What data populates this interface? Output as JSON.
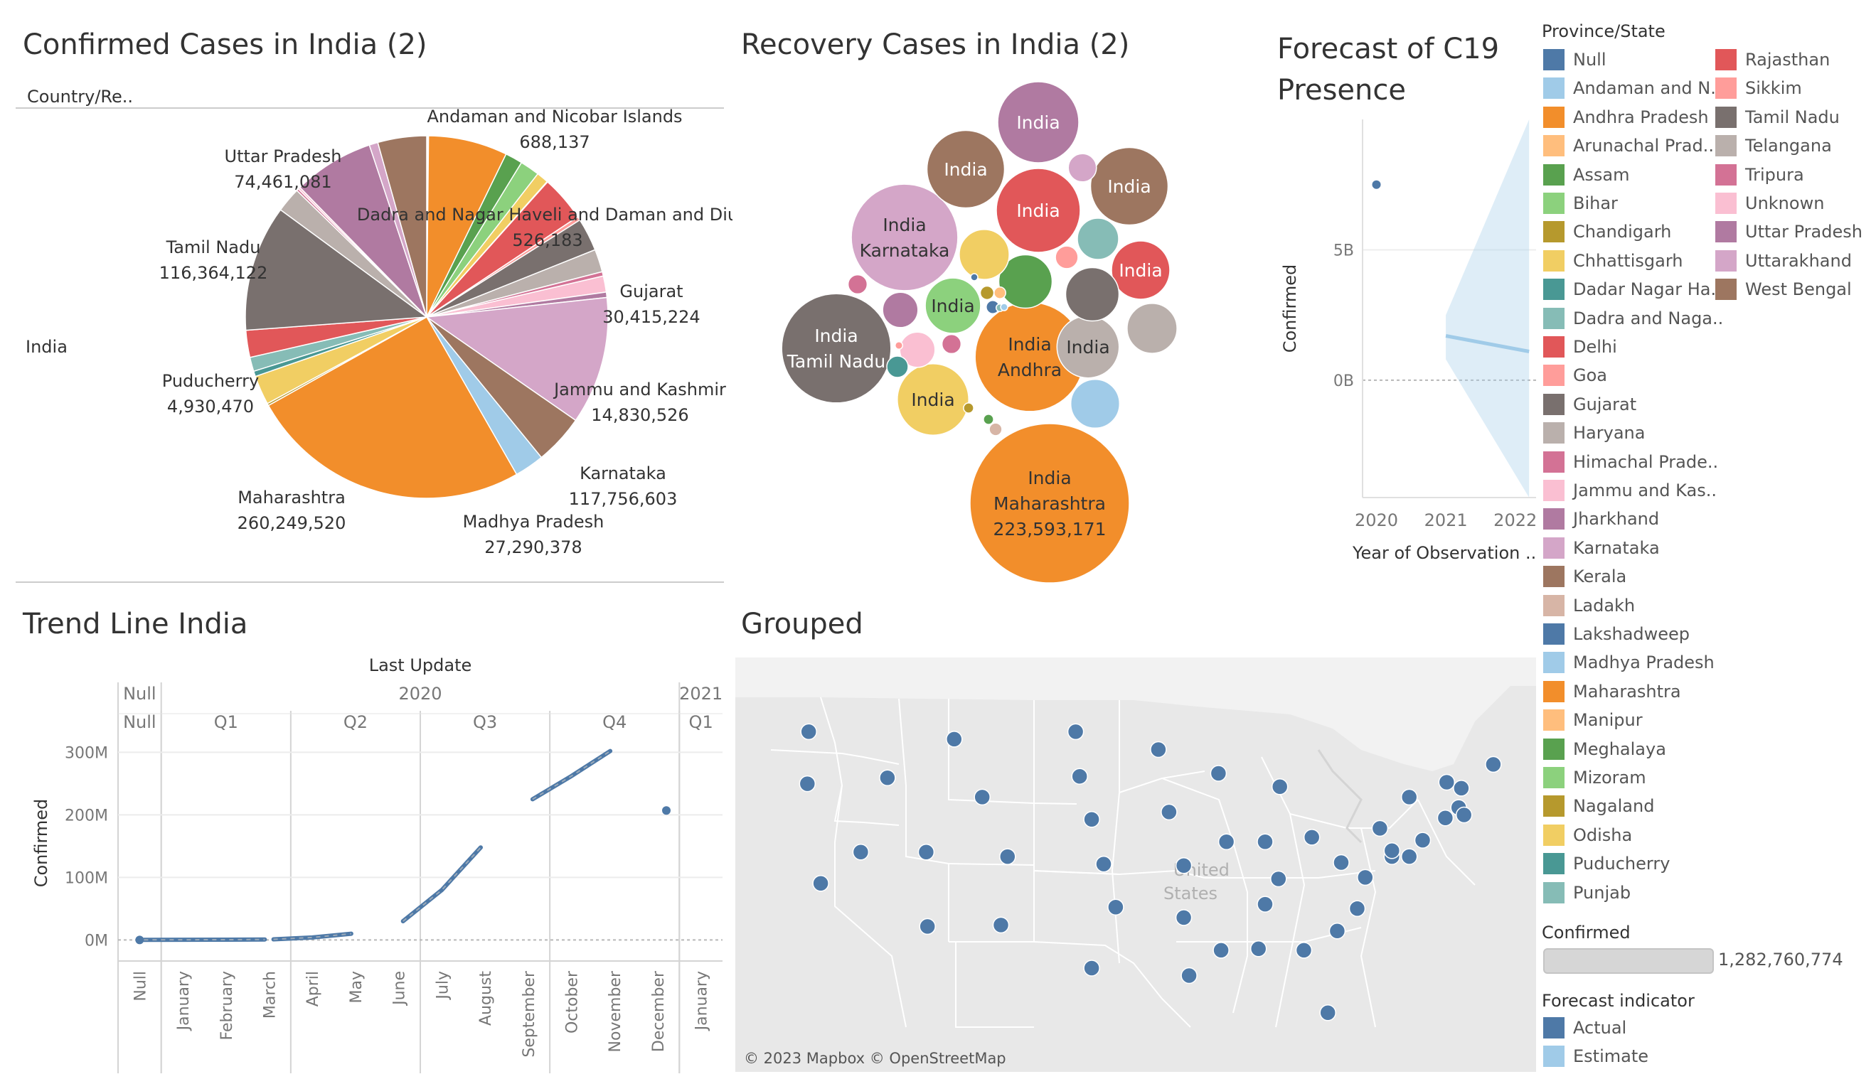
{
  "colors": {
    "Null": "#4e79a7",
    "Andaman and N..": "#a0cbe8",
    "Andhra Pradesh": "#f28e2b",
    "Arunachal Prad..": "#ffbe7d",
    "Assam": "#59a14f",
    "Bihar": "#8cd17d",
    "Chandigarh": "#b6992d",
    "Chhattisgarh": "#f1ce63",
    "Dadar Nagar Ha..": "#499894",
    "Dadra and Naga..": "#86bcb6",
    "Delhi": "#e15759",
    "Goa": "#ff9d9a",
    "Gujarat": "#79706e",
    "Haryana": "#bab0ac",
    "Himachal Prade..": "#d37295",
    "Jammu and Kas..": "#fabfd2",
    "Jharkhand": "#b07aa1",
    "Karnataka": "#d4a6c8",
    "Kerala": "#9d7660",
    "Ladakh": "#d7b5a6",
    "Lakshadweep": "#4e79a7",
    "Madhya Pradesh": "#a0cbe8",
    "Maharashtra": "#f28e2b",
    "Manipur": "#ffbe7d",
    "Meghalaya": "#59a14f",
    "Mizoram": "#8cd17d",
    "Nagaland": "#b6992d",
    "Odisha": "#f1ce63",
    "Puducherry": "#499894",
    "Punjab": "#86bcb6",
    "Rajasthan": "#e15759",
    "Sikkim": "#ff9d9a",
    "Tamil Nadu": "#79706e",
    "Telangana": "#bab0ac",
    "Tripura": "#d37295",
    "Unknown": "#fabfd2",
    "Uttar Pradesh": "#b07aa1",
    "Uttarakhand": "#d4a6c8",
    "West Bengal": "#9d7660"
  },
  "pie": {
    "title": "Confirmed Cases in India (2)",
    "column_header": "Country/Re..",
    "row_label": "India",
    "chart_data": {
      "type": "pie",
      "slices": [
        {
          "name": "Null",
          "value": 1000000
        },
        {
          "name": "Andaman and N..",
          "value": 688137
        },
        {
          "name": "Andhra Pradesh",
          "value": 73000000
        },
        {
          "name": "Assam",
          "value": 16000000
        },
        {
          "name": "Bihar",
          "value": 18000000
        },
        {
          "name": "Chhattisgarh",
          "value": 11000000
        },
        {
          "name": "Dadra and Naga..",
          "value": 526183
        },
        {
          "name": "Delhi",
          "value": 42000000
        },
        {
          "name": "Goa",
          "value": 3500000
        },
        {
          "name": "Gujarat",
          "value": 30415224
        },
        {
          "name": "Haryana",
          "value": 21000000
        },
        {
          "name": "Himachal Prade..",
          "value": 4000000
        },
        {
          "name": "Jammu and Kas..",
          "value": 14830526
        },
        {
          "name": "Jharkhand",
          "value": 5000000
        },
        {
          "name": "Karnataka",
          "value": 117756603
        },
        {
          "name": "Kerala",
          "value": 46000000
        },
        {
          "name": "Madhya Pradesh",
          "value": 27290378
        },
        {
          "name": "Maharashtra",
          "value": 260249520
        },
        {
          "name": "Nagaland",
          "value": 2000000
        },
        {
          "name": "Odisha",
          "value": 27000000
        },
        {
          "name": "Puducherry",
          "value": 4930470
        },
        {
          "name": "Punjab",
          "value": 13000000
        },
        {
          "name": "Rajasthan",
          "value": 25000000
        },
        {
          "name": "Tamil Nadu",
          "value": 116364122
        },
        {
          "name": "Telangana",
          "value": 23000000
        },
        {
          "name": "Tripura",
          "value": 2000000
        },
        {
          "name": "Unknown",
          "value": 2000000
        },
        {
          "name": "Uttar Pradesh",
          "value": 74461081
        },
        {
          "name": "Uttarakhand",
          "value": 8000000
        },
        {
          "name": "West Bengal",
          "value": 45000000
        }
      ],
      "labels": [
        {
          "name": "Andaman and Nicobar Islands",
          "value": "688,137"
        },
        {
          "name": "Dadra and Nagar Haveli and Daman and Diu",
          "value": "526,183"
        },
        {
          "name": "Gujarat",
          "value": "30,415,224"
        },
        {
          "name": "Jammu and Kashmir",
          "value": "14,830,526"
        },
        {
          "name": "Karnataka",
          "value": "117,756,603"
        },
        {
          "name": "Madhya Pradesh",
          "value": "27,290,378"
        },
        {
          "name": "Maharashtra",
          "value": "260,249,520"
        },
        {
          "name": "Puducherry",
          "value": "4,930,470"
        },
        {
          "name": "Tamil Nadu",
          "value": "116,364,122"
        },
        {
          "name": "Uttar Pradesh",
          "value": "74,461,081"
        }
      ]
    }
  },
  "bubbles": {
    "title": "Recovery Cases in India (2)",
    "chart_data": {
      "type": "bubble",
      "items": [
        {
          "state": "Maharashtra",
          "lines": [
            "India",
            "Maharashtra",
            "223,593,171"
          ],
          "value": 223593171
        },
        {
          "state": "Andhra Pradesh",
          "lines": [
            "India",
            "Andhra"
          ],
          "value": 105000000
        },
        {
          "state": "Tamil Nadu",
          "lines": [
            "India",
            "Tamil Nadu"
          ],
          "value": 105000000
        },
        {
          "state": "Karnataka",
          "lines": [
            "India",
            "Karnataka"
          ],
          "value": 100000000
        },
        {
          "state": "Delhi",
          "lines": [
            "India"
          ],
          "value": 62000000
        },
        {
          "state": "Uttar Pradesh",
          "lines": [
            "India"
          ],
          "value": 58000000
        },
        {
          "state": "Kerala",
          "lines": [
            "India"
          ],
          "value": 53000000
        },
        {
          "state": "West Bengal",
          "lines": [
            "India"
          ],
          "value": 53000000
        },
        {
          "state": "Chhattisgarh",
          "lines": [
            "India"
          ],
          "value": 45000000
        },
        {
          "state": "Haryana",
          "lines": [
            "India"
          ],
          "value": 34000000
        },
        {
          "state": "Rajasthan",
          "lines": [
            "India"
          ],
          "value": 30000000
        },
        {
          "state": "Bihar",
          "lines": [
            "India"
          ],
          "value": 27000000
        },
        {
          "state": "Gujarat",
          "lines": [],
          "value": 25000000
        },
        {
          "state": "Meghalaya",
          "lines": [],
          "value": 25000000
        },
        {
          "state": "Telangana",
          "lines": [],
          "value": 22000000
        },
        {
          "state": "Odisha",
          "lines": [],
          "value": 22000000
        },
        {
          "state": "Madhya Pradesh",
          "lines": [],
          "value": 21000000
        },
        {
          "state": "Dadra and Naga..",
          "lines": [],
          "value": 15000000
        },
        {
          "state": "Jharkhand",
          "lines": [],
          "value": 11000000
        },
        {
          "state": "Jammu and Kas..",
          "lines": [],
          "value": 11000000
        },
        {
          "state": "Uttarakhand",
          "lines": [],
          "value": 7000000
        },
        {
          "state": "Goa",
          "lines": [],
          "value": 4500000
        },
        {
          "state": "Puducherry",
          "lines": [],
          "value": 4000000
        },
        {
          "state": "Himachal Prade..",
          "lines": [],
          "value": 3200000
        },
        {
          "state": "Tripura",
          "lines": [],
          "value": 3200000
        },
        {
          "state": "Chandigarh",
          "lines": [],
          "value": 1600000
        },
        {
          "state": "Null",
          "lines": [],
          "value": 1500000
        },
        {
          "state": "Ladakh",
          "lines": [],
          "value": 1400000
        },
        {
          "state": "Manipur",
          "lines": [],
          "value": 1200000
        },
        {
          "state": "Assam",
          "lines": [],
          "value": 900000
        },
        {
          "state": "Nagaland",
          "lines": [],
          "value": 900000
        },
        {
          "state": "Sikkim",
          "lines": [],
          "value": 500000
        },
        {
          "state": "Punjab",
          "lines": [],
          "value": 500000
        },
        {
          "state": "Andaman and N..",
          "lines": [],
          "value": 400000
        },
        {
          "state": "Lakshadweep",
          "lines": [],
          "value": 300000
        }
      ]
    }
  },
  "forecast": {
    "title_line1": "Forecast of C19",
    "title_line2": "Presence",
    "chart_data": {
      "type": "line",
      "ylabel": "Confirmed",
      "xlabel": "Year of Observation ..",
      "x_ticks": [
        "2020",
        "2021",
        "2022"
      ],
      "y_ticks": [
        "5B",
        "0B"
      ],
      "ylim": [
        -4500000000,
        10000000000
      ],
      "xlim": [
        2019.8,
        2022.3
      ],
      "actual_points": [
        {
          "x": 2020,
          "y": 7500000000
        }
      ],
      "estimate_line": [
        {
          "x": 2021,
          "y": 1700000000
        },
        {
          "x": 2022.2,
          "y": 1100000000
        }
      ],
      "estimate_band": {
        "upper": [
          {
            "x": 2021,
            "y": 2500000000
          },
          {
            "x": 2022.2,
            "y": 10000000000
          }
        ],
        "lower": [
          {
            "x": 2021,
            "y": 800000000
          },
          {
            "x": 2022.2,
            "y": -4500000000
          }
        ]
      }
    }
  },
  "trend": {
    "title": "Trend Line India",
    "chart_data": {
      "type": "line",
      "top_header": "Last Update",
      "ylabel": "Confirmed",
      "y_ticks": [
        "300M",
        "200M",
        "100M",
        "0M"
      ],
      "ylim": [
        -20000000,
        330000000
      ],
      "years": [
        {
          "label": "Null",
          "slots": 1
        },
        {
          "label": "2020",
          "slots": 12
        },
        {
          "label": "2021",
          "slots": 1
        }
      ],
      "quarters": [
        {
          "label": "Null",
          "slots": 1
        },
        {
          "label": "Q1",
          "slots": 3
        },
        {
          "label": "Q2",
          "slots": 3
        },
        {
          "label": "Q3",
          "slots": 3
        },
        {
          "label": "Q4",
          "slots": 3
        },
        {
          "label": "Q1",
          "slots": 1
        }
      ],
      "months": [
        "Null",
        "January",
        "February",
        "March",
        "April",
        "May",
        "June",
        "July",
        "August",
        "September",
        "October",
        "November",
        "December",
        "January"
      ],
      "segments": [
        {
          "points": [
            {
              "slot": 0,
              "y": 0
            }
          ]
        },
        {
          "points": [
            {
              "slot": 0.6,
              "y": 200000
            },
            {
              "slot": 1.5,
              "y": 300000
            },
            {
              "slot": 2.5,
              "y": 500000
            },
            {
              "slot": 3.4,
              "y": 800000
            }
          ]
        },
        {
          "points": [
            {
              "slot": 3.6,
              "y": 1000000
            },
            {
              "slot": 4.5,
              "y": 4000000
            },
            {
              "slot": 5.4,
              "y": 10000000
            }
          ]
        },
        {
          "points": [
            {
              "slot": 6.6,
              "y": 30000000
            },
            {
              "slot": 7.5,
              "y": 80000000
            },
            {
              "slot": 8.4,
              "y": 148000000
            }
          ]
        },
        {
          "points": [
            {
              "slot": 9.6,
              "y": 225000000
            },
            {
              "slot": 10.5,
              "y": 262000000
            },
            {
              "slot": 11.4,
              "y": 302000000
            }
          ]
        },
        {
          "points": [
            {
              "slot": 12.6,
              "y": 207000000
            }
          ]
        }
      ]
    }
  },
  "map": {
    "title": "Grouped",
    "country_label_1": "United",
    "country_label_2": "States",
    "attribution": "© 2023 Mapbox © OpenStreetMap",
    "chart_data": {
      "type": "scatter",
      "points": [
        {
          "lon": -120.5,
          "lat": 47.4
        },
        {
          "lon": -120.6,
          "lat": 43.9
        },
        {
          "lon": -119.6,
          "lat": 37.2
        },
        {
          "lon": -116.6,
          "lat": 39.3
        },
        {
          "lon": -114.6,
          "lat": 44.3
        },
        {
          "lon": -109.6,
          "lat": 46.9
        },
        {
          "lon": -111.7,
          "lat": 39.3
        },
        {
          "lon": -111.6,
          "lat": 34.3
        },
        {
          "lon": -107.5,
          "lat": 43.0
        },
        {
          "lon": -105.6,
          "lat": 39.0
        },
        {
          "lon": -106.1,
          "lat": 34.4
        },
        {
          "lon": -100.5,
          "lat": 47.4
        },
        {
          "lon": -100.2,
          "lat": 44.4
        },
        {
          "lon": -99.3,
          "lat": 41.5
        },
        {
          "lon": -98.4,
          "lat": 38.5
        },
        {
          "lon": -97.5,
          "lat": 35.6
        },
        {
          "lon": -99.3,
          "lat": 31.5
        },
        {
          "lon": -94.3,
          "lat": 46.2
        },
        {
          "lon": -93.5,
          "lat": 42.0
        },
        {
          "lon": -92.4,
          "lat": 38.4
        },
        {
          "lon": -92.4,
          "lat": 34.9
        },
        {
          "lon": -92.0,
          "lat": 31.0
        },
        {
          "lon": -89.8,
          "lat": 44.6
        },
        {
          "lon": -89.2,
          "lat": 40.0
        },
        {
          "lon": -89.6,
          "lat": 32.7
        },
        {
          "lon": -86.3,
          "lat": 40.0
        },
        {
          "lon": -86.8,
          "lat": 32.8
        },
        {
          "lon": -85.2,
          "lat": 43.7
        },
        {
          "lon": -82.8,
          "lat": 40.3
        },
        {
          "lon": -85.3,
          "lat": 37.5
        },
        {
          "lon": -86.3,
          "lat": 35.8
        },
        {
          "lon": -83.4,
          "lat": 32.7
        },
        {
          "lon": -81.6,
          "lat": 28.5
        },
        {
          "lon": -80.9,
          "lat": 34.0
        },
        {
          "lon": -79.4,
          "lat": 35.5
        },
        {
          "lon": -78.8,
          "lat": 37.6
        },
        {
          "lon": -80.6,
          "lat": 38.6
        },
        {
          "lon": -77.7,
          "lat": 40.9
        },
        {
          "lon": -75.5,
          "lat": 43.0
        },
        {
          "lon": -74.5,
          "lat": 40.1
        },
        {
          "lon": -75.5,
          "lat": 39.0
        },
        {
          "lon": -76.8,
          "lat": 39.0
        },
        {
          "lon": -76.8,
          "lat": 39.4
        },
        {
          "lon": -72.7,
          "lat": 44.0
        },
        {
          "lon": -71.6,
          "lat": 43.6
        },
        {
          "lon": -69.2,
          "lat": 45.2
        },
        {
          "lon": -71.8,
          "lat": 42.3
        },
        {
          "lon": -72.8,
          "lat": 41.6
        },
        {
          "lon": -71.4,
          "lat": 41.8
        }
      ]
    }
  },
  "legend": {
    "title": "Province/State",
    "col1": [
      "Null",
      "Andaman and N..",
      "Andhra Pradesh",
      "Arunachal Prad..",
      "Assam",
      "Bihar",
      "Chandigarh",
      "Chhattisgarh",
      "Dadar Nagar Ha..",
      "Dadra and Naga..",
      "Delhi",
      "Goa",
      "Gujarat",
      "Haryana",
      "Himachal Prade..",
      "Jammu and Kas..",
      "Jharkhand",
      "Karnataka",
      "Kerala",
      "Ladakh",
      "Lakshadweep",
      "Madhya Pradesh",
      "Maharashtra",
      "Manipur",
      "Meghalaya",
      "Mizoram",
      "Nagaland",
      "Odisha",
      "Puducherry",
      "Punjab"
    ],
    "col2": [
      "Rajasthan",
      "Sikkim",
      "Tamil Nadu",
      "Telangana",
      "Tripura",
      "Unknown",
      "Uttar Pradesh",
      "Uttarakhand",
      "West Bengal"
    ],
    "confirmed_title": "Confirmed",
    "confirmed_value": "1,282,760,774",
    "forecast_title": "Forecast indicator",
    "forecast_items": [
      {
        "label": "Actual",
        "color": "#4e79a7"
      },
      {
        "label": "Estimate",
        "color": "#a0cbe8"
      }
    ]
  }
}
